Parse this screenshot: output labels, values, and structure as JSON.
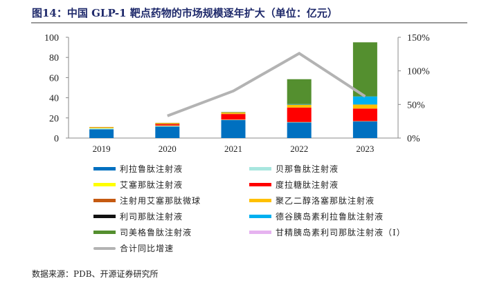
{
  "title": "图14：中国 GLP-1 靶点药物的市场规模逐年扩大（单位：亿元）",
  "source": "数据来源：PDB、开源证券研究所",
  "chart_data": {
    "type": "bar",
    "stacked": true,
    "categories": [
      "2019",
      "2020",
      "2021",
      "2022",
      "2023"
    ],
    "ylim": [
      0,
      100
    ],
    "yticks": [
      "0",
      "20",
      "40",
      "60",
      "80",
      "100"
    ],
    "y2lim": [
      0,
      150
    ],
    "y2ticks": [
      "0%",
      "50%",
      "100%",
      "150%"
    ],
    "legend_position": "bottom",
    "series": [
      {
        "name": "利拉鲁肽注射液",
        "color": "#0070c0",
        "values": [
          8.7,
          11.5,
          17.8,
          15.5,
          16.5
        ]
      },
      {
        "name": "贝那鲁肽注射液",
        "color": "#a8e6df",
        "values": [
          1.0,
          0.6,
          0.3,
          0.2,
          0.2
        ]
      },
      {
        "name": "艾塞那肽注射液",
        "color": "#ffff00",
        "values": [
          0.5,
          0.3,
          0.2,
          0.2,
          0.1
        ]
      },
      {
        "name": "度拉糖肽注射液",
        "color": "#ff0000",
        "values": [
          0,
          1.2,
          5.5,
          14.3,
          12.4
        ]
      },
      {
        "name": "注射用艾塞那肽微球",
        "color": "#c55a11",
        "values": [
          0.5,
          0.6,
          0.3,
          0.1,
          0.1
        ]
      },
      {
        "name": "聚乙二醇洛塞那肽注射液",
        "color": "#ffc000",
        "values": [
          0.3,
          0.8,
          1.2,
          2.8,
          3.9
        ]
      },
      {
        "name": "利司那肽注射液",
        "color": "#111111",
        "values": [
          0,
          0.1,
          0.1,
          0.1,
          0.1
        ]
      },
      {
        "name": "德谷胰岛素利拉鲁肽注射液",
        "color": "#00b0f0",
        "values": [
          0,
          0,
          0,
          0.5,
          8
        ]
      },
      {
        "name": "司美格鲁肽注射液",
        "color": "#548f2f",
        "values": [
          0,
          0,
          0.4,
          24.7,
          53.7
        ]
      },
      {
        "name": "甘精胰岛素利司那肽注射液（I）",
        "color": "#e6b3f0",
        "values": [
          0,
          0,
          0,
          0,
          0
        ]
      }
    ],
    "line": {
      "name": "合计同比增速",
      "color": "#b3b3b3",
      "axis": "right",
      "values": [
        null,
        33,
        70,
        126,
        62
      ]
    }
  }
}
